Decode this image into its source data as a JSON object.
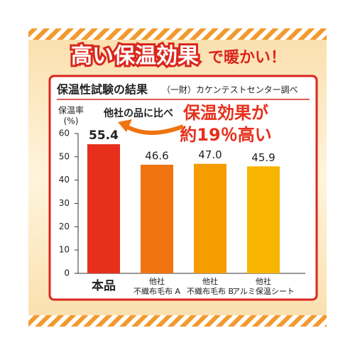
{
  "headline": {
    "main": "高い保温効果",
    "tail": "で暖かい！"
  },
  "chart_data": {
    "type": "bar",
    "title": "保温性試験の結果",
    "subtitle": "（一財）カケンテストセンター調べ",
    "y_label": "保温率",
    "y_unit": "(%)",
    "annotations": {
      "compare": "他社の品に比べ",
      "line1": "保温効果が",
      "line2": "約19％高い"
    },
    "categories": [
      "本品",
      "他社\n不織布毛布 A",
      "他社\n不織布毛布 B",
      "他社\nアルミ保温シート"
    ],
    "values": [
      55.4,
      46.6,
      47.0,
      45.9
    ],
    "value_labels": [
      "55.4",
      "46.6",
      "47.0",
      "45.9"
    ],
    "colors": [
      "#e6301c",
      "#ef7410",
      "#f59c00",
      "#f7b400"
    ],
    "ylim": [
      0,
      60
    ],
    "yticks": [
      0,
      10,
      20,
      30,
      40,
      50,
      60
    ]
  }
}
